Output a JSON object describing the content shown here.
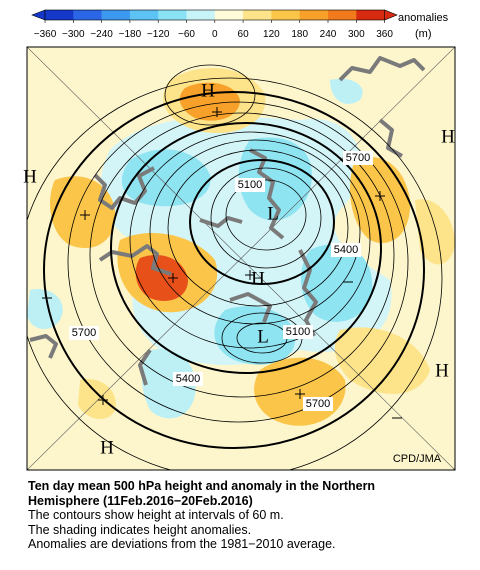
{
  "colorbar": {
    "title": "anomalies",
    "unit": "(m)",
    "ticks": [
      "−360",
      "−300",
      "−240",
      "−180",
      "−120",
      "−60",
      "0",
      "60",
      "120",
      "180",
      "240",
      "300",
      "360"
    ]
  },
  "map": {
    "contour_labels": [
      5100,
      5700,
      5400,
      5700,
      5100,
      5400,
      5700
    ],
    "pressure_labels": [
      "H",
      "H",
      "H",
      "L",
      "H",
      "L",
      "H",
      "H"
    ],
    "credit": "CPD/JMA"
  },
  "caption": {
    "title": [
      "Ten day mean 500 hPa height and anomaly in the Northern",
      "Hemisphere (11Feb.2016−20Feb.2016)"
    ],
    "lines": [
      "The contours show height at intervals of 60 m.",
      "The shading indicates height anomalies.",
      "Anomalies are deviations from the 1981−2010 average."
    ]
  }
}
